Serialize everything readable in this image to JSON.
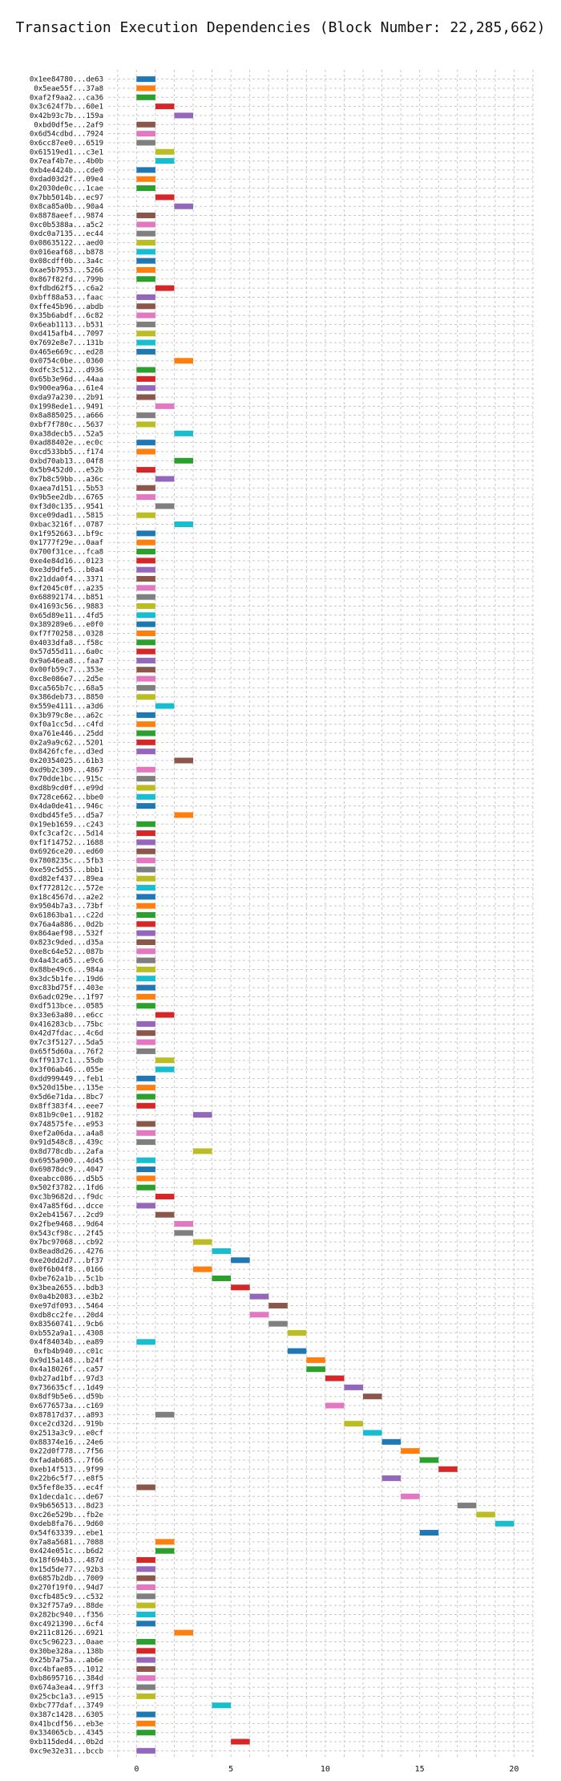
{
  "chart_data": {
    "type": "bar",
    "orientation": "horizontal-range",
    "title": "Transaction Execution Dependencies (Block Number: 22,285,662)",
    "xlabel": "",
    "ylabel": "",
    "xlim": [
      -1.5,
      21
    ],
    "xticks": [
      0,
      5,
      10,
      15,
      20
    ],
    "grid": true,
    "bar_width": 1,
    "palette": [
      "#1f77b4",
      "#ff7f0e",
      "#2ca02c",
      "#d62728",
      "#9467bd",
      "#8c564b",
      "#e377c2",
      "#7f7f7f",
      "#bcbd22",
      "#17becf"
    ],
    "transactions": [
      {
        "label": "0x1ee84780...de63",
        "start": 0
      },
      {
        "label": "0x5eae55f...37a8",
        "start": 0
      },
      {
        "label": "0xaf2f9aa2...ca36",
        "start": 0
      },
      {
        "label": "0x3c624f7b...60e1",
        "start": 1
      },
      {
        "label": "0x42b93c7b...159a",
        "start": 2
      },
      {
        "label": "0xbd0df5e...2af9",
        "start": 0
      },
      {
        "label": "0x6d54cdbd...7924",
        "start": 0
      },
      {
        "label": "0x6cc87ee0...6519",
        "start": 0
      },
      {
        "label": "0x61519ed1...c3e1",
        "start": 1
      },
      {
        "label": "0x7eaf4b7e...4b0b",
        "start": 1
      },
      {
        "label": "0xb4e4424b...cde0",
        "start": 0
      },
      {
        "label": "0xdad03d2f...09e4",
        "start": 0
      },
      {
        "label": "0x2030de0c...1cae",
        "start": 0
      },
      {
        "label": "0x7bb5014b...ec97",
        "start": 1
      },
      {
        "label": "0x8ca85a0b...90a4",
        "start": 2
      },
      {
        "label": "0x8878aeef...9874",
        "start": 0
      },
      {
        "label": "0xc0b5388a...a5c2",
        "start": 0
      },
      {
        "label": "0xdc0a7135...ec44",
        "start": 0
      },
      {
        "label": "0x08635122...aed0",
        "start": 0
      },
      {
        "label": "0x016eaf68...b878",
        "start": 0
      },
      {
        "label": "0x08cdff0b...3a4c",
        "start": 0
      },
      {
        "label": "0xae5b7953...5266",
        "start": 0
      },
      {
        "label": "0x867f82fd...799b",
        "start": 0
      },
      {
        "label": "0xfdbd62f5...c6a2",
        "start": 1
      },
      {
        "label": "0xbff88a53...faac",
        "start": 0
      },
      {
        "label": "0xffe45b96...abdb",
        "start": 0
      },
      {
        "label": "0x35b6abdf...6c82",
        "start": 0
      },
      {
        "label": "0x6eab1113...b531",
        "start": 0
      },
      {
        "label": "0xd415afb4...7097",
        "start": 0
      },
      {
        "label": "0x7692e8e7...131b",
        "start": 0
      },
      {
        "label": "0x465e669c...ed28",
        "start": 0
      },
      {
        "label": "0x0754c0be...0360",
        "start": 2
      },
      {
        "label": "0xdfc3c512...d936",
        "start": 0
      },
      {
        "label": "0x65b3e96d...44aa",
        "start": 0
      },
      {
        "label": "0x900ea96a...61e4",
        "start": 0
      },
      {
        "label": "0xda97a230...2b91",
        "start": 0
      },
      {
        "label": "0x1998ede1...9491",
        "start": 1
      },
      {
        "label": "0x8a885025...a666",
        "start": 0
      },
      {
        "label": "0xbf7f780c...5637",
        "start": 0
      },
      {
        "label": "0xa38decb5...52a5",
        "start": 2
      },
      {
        "label": "0xad88402e...ec0c",
        "start": 0
      },
      {
        "label": "0xcd533bb5...f174",
        "start": 0
      },
      {
        "label": "0xbd70ab13...04f8",
        "start": 2
      },
      {
        "label": "0x5b9452d0...e52b",
        "start": 0
      },
      {
        "label": "0x7b8c59bb...a36c",
        "start": 1
      },
      {
        "label": "0xaea7d151...5b53",
        "start": 0
      },
      {
        "label": "0x9b5ee2db...6765",
        "start": 0
      },
      {
        "label": "0xf3d0c135...9541",
        "start": 1
      },
      {
        "label": "0xce09dad1...5815",
        "start": 0
      },
      {
        "label": "0xbac3216f...0787",
        "start": 2
      },
      {
        "label": "0x1f952663...bf9c",
        "start": 0
      },
      {
        "label": "0x1777f29e...0aaf",
        "start": 0
      },
      {
        "label": "0x700f31ce...fca8",
        "start": 0
      },
      {
        "label": "0xe4e84d16...0123",
        "start": 0
      },
      {
        "label": "0xe3d9dfe5...b0a4",
        "start": 0
      },
      {
        "label": "0x21dda0f4...3371",
        "start": 0
      },
      {
        "label": "0xf2045c0f...a235",
        "start": 0
      },
      {
        "label": "0x68892174...b851",
        "start": 0
      },
      {
        "label": "0x41693c56...9883",
        "start": 0
      },
      {
        "label": "0x65d89e11...4fd5",
        "start": 0
      },
      {
        "label": "0x389289e6...e0f0",
        "start": 0
      },
      {
        "label": "0xf7f70258...0328",
        "start": 0
      },
      {
        "label": "0x4033dfa8...f58c",
        "start": 0
      },
      {
        "label": "0x57d55d11...6a0c",
        "start": 0
      },
      {
        "label": "0x9a646ea8...faa7",
        "start": 0
      },
      {
        "label": "0x00fb59c7...353e",
        "start": 0
      },
      {
        "label": "0xc8e086e7...2d5e",
        "start": 0
      },
      {
        "label": "0xca565b7c...68a5",
        "start": 0
      },
      {
        "label": "0x386deb73...8850",
        "start": 0
      },
      {
        "label": "0x559e4111...a3d6",
        "start": 1
      },
      {
        "label": "0x3b979c8e...a62c",
        "start": 0
      },
      {
        "label": "0xf0a1cc5d...c4fd",
        "start": 0
      },
      {
        "label": "0xa761e446...25dd",
        "start": 0
      },
      {
        "label": "0x2a9a9c62...5201",
        "start": 0
      },
      {
        "label": "0x8426fcfe...d3ed",
        "start": 0
      },
      {
        "label": "0x20354025...61b3",
        "start": 2
      },
      {
        "label": "0xd9b2c309...4867",
        "start": 0
      },
      {
        "label": "0x70dde1bc...915c",
        "start": 0
      },
      {
        "label": "0xd8b9cd0f...e99d",
        "start": 0
      },
      {
        "label": "0x728ce662...bbe0",
        "start": 0
      },
      {
        "label": "0x4da0de41...946c",
        "start": 0
      },
      {
        "label": "0xdbd45fe5...d5a7",
        "start": 2
      },
      {
        "label": "0x19eb1659...c243",
        "start": 0
      },
      {
        "label": "0xfc3caf2c...5d14",
        "start": 0
      },
      {
        "label": "0xf1f14752...1688",
        "start": 0
      },
      {
        "label": "0x6926ce20...ed60",
        "start": 0
      },
      {
        "label": "0x7808235c...5fb3",
        "start": 0
      },
      {
        "label": "0xe59c5d55...bbb1",
        "start": 0
      },
      {
        "label": "0xd82ef437...89ea",
        "start": 0
      },
      {
        "label": "0xf772812c...572e",
        "start": 0
      },
      {
        "label": "0x18c4567d...a2e2",
        "start": 0
      },
      {
        "label": "0x9504b7a3...73bf",
        "start": 0
      },
      {
        "label": "0x61863ba1...c22d",
        "start": 0
      },
      {
        "label": "0x76a4a886...0d2b",
        "start": 0
      },
      {
        "label": "0x864aef98...532f",
        "start": 0
      },
      {
        "label": "0x823c9ded...d35a",
        "start": 0
      },
      {
        "label": "0xe8c64e52...087b",
        "start": 0
      },
      {
        "label": "0x4a43ca65...e9c6",
        "start": 0
      },
      {
        "label": "0x88be49c6...984a",
        "start": 0
      },
      {
        "label": "0x3dc5b1fe...19d6",
        "start": 0
      },
      {
        "label": "0xc83bd75f...403e",
        "start": 0
      },
      {
        "label": "0x6adc029e...1f97",
        "start": 0
      },
      {
        "label": "0xdf513bce...0585",
        "start": 0
      },
      {
        "label": "0x33e63a80...e6cc",
        "start": 1
      },
      {
        "label": "0x416283cb...75bc",
        "start": 0
      },
      {
        "label": "0x42d7fdac...4c6d",
        "start": 0
      },
      {
        "label": "0x7c3f5127...5da5",
        "start": 0
      },
      {
        "label": "0x65f5d60a...76f2",
        "start": 0
      },
      {
        "label": "0xff9137c1...55db",
        "start": 1
      },
      {
        "label": "0x3f06ab46...055e",
        "start": 1
      },
      {
        "label": "0xdd999449...feb1",
        "start": 0
      },
      {
        "label": "0x520d15be...135e",
        "start": 0
      },
      {
        "label": "0x5d6e71da...8bc7",
        "start": 0
      },
      {
        "label": "0x8ff383f4...eee7",
        "start": 0
      },
      {
        "label": "0x81b9c0e1...9182",
        "start": 3
      },
      {
        "label": "0x748575fe...e953",
        "start": 0
      },
      {
        "label": "0xef2a06da...a4a8",
        "start": 0
      },
      {
        "label": "0x91d548c8...439c",
        "start": 0
      },
      {
        "label": "0x8d778cdb...2afa",
        "start": 3
      },
      {
        "label": "0x6955a900...4d45",
        "start": 0
      },
      {
        "label": "0x69878dc9...4047",
        "start": 0
      },
      {
        "label": "0xeabcc086...d5b5",
        "start": 0
      },
      {
        "label": "0x502f3782...1fd6",
        "start": 0
      },
      {
        "label": "0xc3b9682d...f9dc",
        "start": 1
      },
      {
        "label": "0x47a85f6d...dcce",
        "start": 0
      },
      {
        "label": "0x2eb41567...2cd9",
        "start": 1
      },
      {
        "label": "0x2fbe9468...9d64",
        "start": 2
      },
      {
        "label": "0x543cf98c...2f45",
        "start": 2
      },
      {
        "label": "0x7bc97068...cb92",
        "start": 3
      },
      {
        "label": "0x8ead8d26...4276",
        "start": 4
      },
      {
        "label": "0xe20dd2d7...bf37",
        "start": 5
      },
      {
        "label": "0x0f6b04f8...0166",
        "start": 3
      },
      {
        "label": "0xbe762a1b...5c1b",
        "start": 4
      },
      {
        "label": "0x3bea2655...bdb3",
        "start": 5
      },
      {
        "label": "0x0a4b2083...e3b2",
        "start": 6
      },
      {
        "label": "0xe97df093...5464",
        "start": 7
      },
      {
        "label": "0xdb8cc2fe...20d4",
        "start": 6
      },
      {
        "label": "0x83560741...9cb6",
        "start": 7
      },
      {
        "label": "0xb552a9a1...4308",
        "start": 8
      },
      {
        "label": "0x4f84034b...ea89",
        "start": 0
      },
      {
        "label": "0xfb4b940...c01c",
        "start": 8
      },
      {
        "label": "0x9d15a148...b24f",
        "start": 9
      },
      {
        "label": "0x4a18026f...ca57",
        "start": 9
      },
      {
        "label": "0xb27ad1bf...97d3",
        "start": 10
      },
      {
        "label": "0x736635cf...1d49",
        "start": 11
      },
      {
        "label": "0x8df9b5e6...d59b",
        "start": 12
      },
      {
        "label": "0x6776573a...c169",
        "start": 10
      },
      {
        "label": "0x87817d37...a893",
        "start": 1
      },
      {
        "label": "0xce2cd32d...919b",
        "start": 11
      },
      {
        "label": "0x2513a3c9...e0cf",
        "start": 12
      },
      {
        "label": "0x88374e16...24e6",
        "start": 13
      },
      {
        "label": "0x22d0f778...7f56",
        "start": 14
      },
      {
        "label": "0xfadab685...7f66",
        "start": 15
      },
      {
        "label": "0xeb14f513...9f99",
        "start": 16
      },
      {
        "label": "0x22b6c5f7...e8f5",
        "start": 13
      },
      {
        "label": "0x5fef8e35...ec4f",
        "start": 0
      },
      {
        "label": "0x1decda1c...de67",
        "start": 14
      },
      {
        "label": "0x9b656513...8d23",
        "start": 17
      },
      {
        "label": "0xc26e529b...fb2e",
        "start": 18
      },
      {
        "label": "0xdeb8fa76...9d60",
        "start": 19
      },
      {
        "label": "0x54f63339...ebe1",
        "start": 15
      },
      {
        "label": "0x7a8a5681...7088",
        "start": 1
      },
      {
        "label": "0x424e051c...b6d2",
        "start": 1
      },
      {
        "label": "0x18f694b3...487d",
        "start": 0
      },
      {
        "label": "0x15d5de77...92b3",
        "start": 0
      },
      {
        "label": "0x6857b2db...7009",
        "start": 0
      },
      {
        "label": "0x270f19f0...94d7",
        "start": 0
      },
      {
        "label": "0xcfb485c9...c532",
        "start": 0
      },
      {
        "label": "0x32f757a9...88de",
        "start": 0
      },
      {
        "label": "0x282bc940...f356",
        "start": 0
      },
      {
        "label": "0xc4921390...6cf4",
        "start": 0
      },
      {
        "label": "0x211c8126...6921",
        "start": 2
      },
      {
        "label": "0xc5c96223...0aae",
        "start": 0
      },
      {
        "label": "0x30be328a...138b",
        "start": 0
      },
      {
        "label": "0x25b7a75a...ab6e",
        "start": 0
      },
      {
        "label": "0xc4bfae85...1012",
        "start": 0
      },
      {
        "label": "0xb8695716...384d",
        "start": 0
      },
      {
        "label": "0x674a3ea4...9ff3",
        "start": 0
      },
      {
        "label": "0x25cbc1a3...e915",
        "start": 0
      },
      {
        "label": "0xbc777daf...3749",
        "start": 4
      },
      {
        "label": "0x387c1428...6305",
        "start": 0
      },
      {
        "label": "0x41bcdf56...eb3e",
        "start": 0
      },
      {
        "label": "0x334065cb...4345",
        "start": 0
      },
      {
        "label": "0xb115ded4...0b2d",
        "start": 5
      },
      {
        "label": "0xc9e32e31...bccb",
        "start": 0
      }
    ]
  }
}
